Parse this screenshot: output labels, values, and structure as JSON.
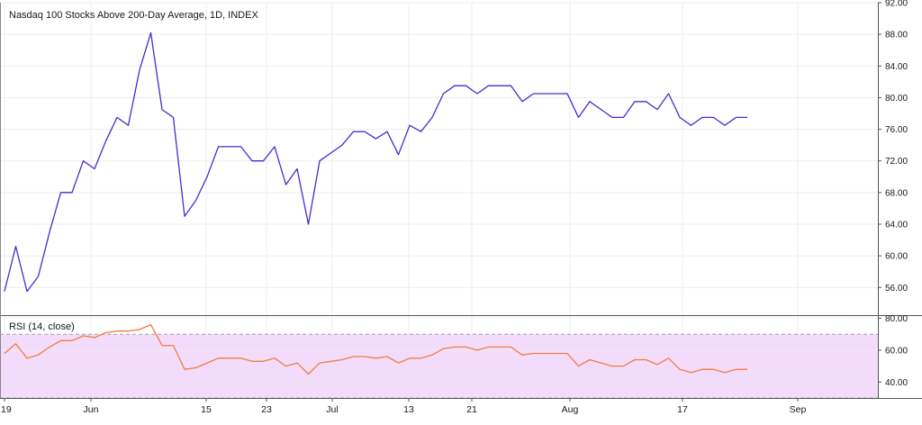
{
  "chart": {
    "title": "Nasdaq 100 Stocks Above 200-Day Average, 1D, INDEX"
  },
  "rsi": {
    "label": "RSI (14, close)"
  },
  "colors": {
    "price_line": "#3f2fd1",
    "rsi_line": "#f47b3c",
    "rsi_band_fill": "#f3dcfb",
    "grid": "#eeeeee",
    "text": "#131722"
  },
  "chart_data": [
    {
      "type": "line",
      "title": "Nasdaq 100 Stocks Above 200-Day Average, 1D, INDEX",
      "xlabel": "",
      "ylabel": "",
      "x_ticks": [
        "19",
        "Jun",
        "15",
        "23",
        "Jul",
        "13",
        "21",
        "Aug",
        "17",
        "Sep"
      ],
      "y_ticks": [
        "56.00",
        "60.00",
        "64.00",
        "68.00",
        "72.00",
        "76.00",
        "80.00",
        "84.00",
        "88.00",
        "92.00"
      ],
      "ylim": [
        52.5,
        92
      ],
      "grid": true,
      "series": [
        {
          "values": [
            55.5,
            61.2,
            55.5,
            57.4,
            63.0,
            68.0,
            68.0,
            72.0,
            71.0,
            74.5,
            77.5,
            76.5,
            83.5,
            88.2,
            78.5,
            77.5,
            65.0,
            67.0,
            70.0,
            73.8,
            73.8,
            73.8,
            72.0,
            72.0,
            73.8,
            69.0,
            71.0,
            64.0,
            72.0,
            73.0,
            74.0,
            75.7,
            75.7,
            74.8,
            75.7,
            72.8,
            76.5,
            75.7,
            77.5,
            80.5,
            81.5,
            81.5,
            80.5,
            81.5,
            81.5,
            81.5,
            79.5,
            80.5,
            80.5,
            80.5,
            80.5,
            77.5,
            79.5,
            78.5,
            77.5,
            77.5,
            79.5,
            79.5,
            78.5,
            80.5,
            77.5,
            76.5,
            77.5,
            77.5,
            76.5,
            77.5,
            77.5
          ]
        }
      ]
    },
    {
      "type": "line",
      "title": "RSI (14, close)",
      "y_ticks": [
        "40.00",
        "60.00",
        "80.00"
      ],
      "ylim": [
        30,
        82
      ],
      "band": [
        30,
        70
      ],
      "grid": true,
      "series": [
        {
          "values": [
            58,
            64,
            55,
            57,
            62,
            66,
            66,
            69,
            68,
            71,
            72,
            72,
            73,
            76,
            63,
            63,
            48,
            49,
            52,
            55,
            55,
            55,
            53,
            53,
            55,
            50,
            52,
            45,
            52,
            53,
            54,
            56,
            56,
            55,
            56,
            52,
            55,
            55,
            57,
            61,
            62,
            62,
            60,
            62,
            62,
            62,
            57,
            58,
            58,
            58,
            58,
            50,
            54,
            52,
            50,
            50,
            54,
            54,
            51,
            55,
            48,
            46,
            48,
            48,
            46,
            48,
            48
          ]
        }
      ]
    }
  ]
}
